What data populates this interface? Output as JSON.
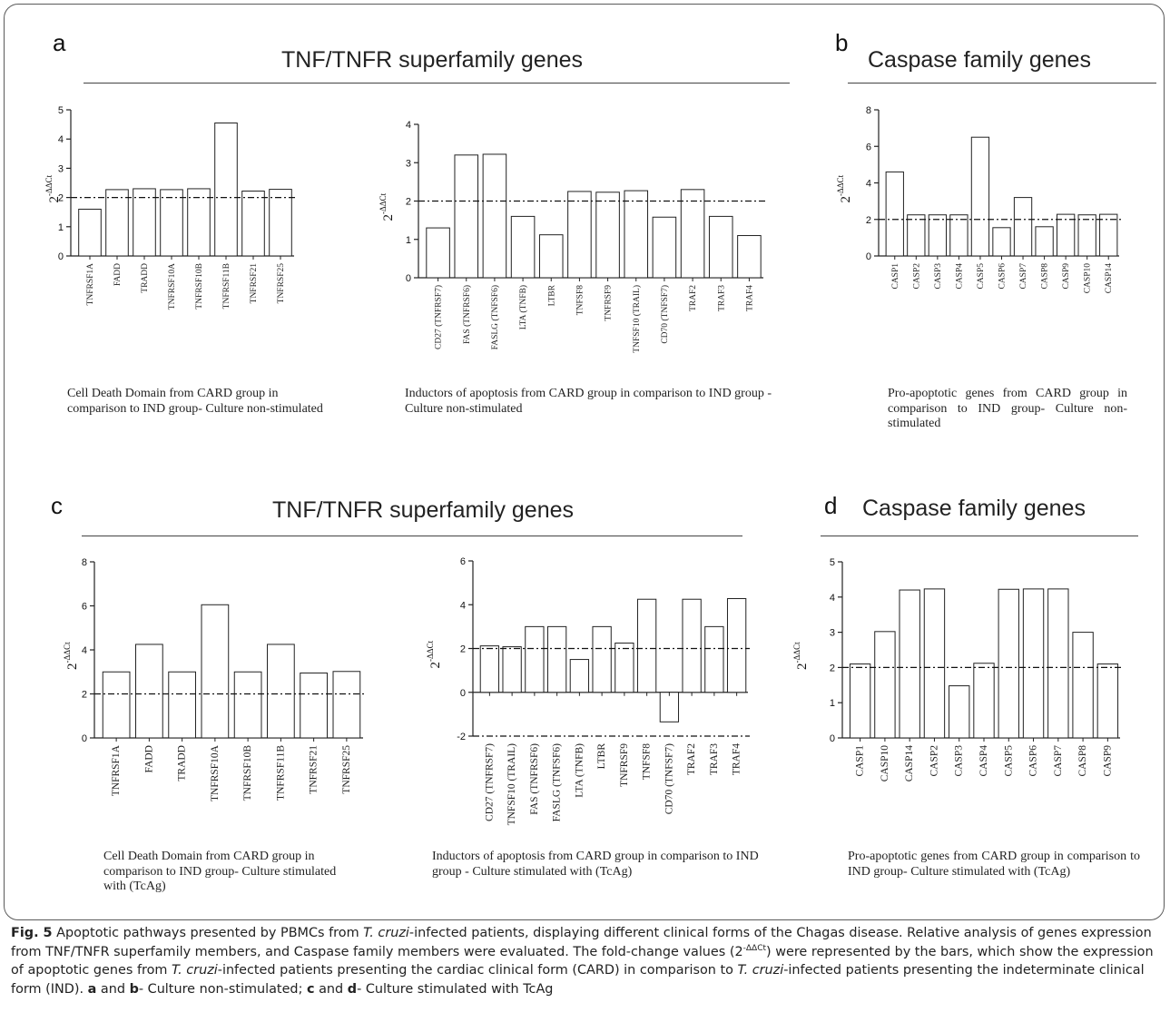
{
  "sections": {
    "a": {
      "letter": "a",
      "title": "TNF/TNFR superfamily genes"
    },
    "b": {
      "letter": "b",
      "title": "Caspase family genes"
    },
    "c": {
      "letter": "c",
      "title": "TNF/TNFR superfamily genes"
    },
    "d": {
      "letter": "d",
      "title": "Caspase family genes"
    }
  },
  "captions": {
    "a1": "Cell Death Domain from CARD group in comparison to IND group- Culture non-stimulated",
    "a2": "Inductors of apoptosis from CARD group in comparison to IND group - Culture non-stimulated",
    "b1": "Pro-apoptotic genes from CARD group in comparison to IND group- Culture non-stimulated",
    "c1": "Cell Death Domain from CARD group in comparison to IND group- Culture stimulated with (TcAg)",
    "c2": "Inductors of apoptosis from CARD group in comparison to IND group - Culture stimulated with (TcAg)",
    "d1": "Pro-apoptotic genes from CARD group in comparison to IND group- Culture stimulated with (TcAg)"
  },
  "figure_caption": {
    "label": "Fig. 5",
    "t1": " Apoptotic pathways presented by PBMCs from ",
    "species": "T. cruzi",
    "t2": "-infected patients, displaying different clinical forms of the Chagas disease. Relative analysis of genes expression from TNF/TNFR superfamily members, and Caspase family members were evaluated. The fold-change values (2",
    "sup": "-ΔΔCt",
    "t3": ") were represented by the bars, which show the expression of apoptotic genes from ",
    "t4": "-infected patients presenting the cardiac clinical form (CARD) in comparison to ",
    "t5": "-infected patients presenting the indeterminate clinical form (IND). ",
    "bold_a": "a",
    "and1": " and ",
    "bold_b": "b",
    "t6": "- Culture non-stimulated; ",
    "bold_c": "c",
    "and2": " and ",
    "bold_d": "d",
    "t7": "- Culture stimulated with TcAg"
  },
  "chart_data": [
    {
      "panel": "a1",
      "type": "bar",
      "ylabel": "2-ΔΔCt",
      "ylim": [
        0,
        5
      ],
      "yticks": [
        0,
        1,
        2,
        3,
        4,
        5
      ],
      "reference_line": 2,
      "categories": [
        "TNFRSF1A",
        "FADD",
        "TRADD",
        "TNFRSF10A",
        "TNFRSF10B",
        "TNFRSF11B",
        "TNFRSF21",
        "TNFRSF25"
      ],
      "values": [
        1.6,
        2.27,
        2.3,
        2.27,
        2.3,
        4.55,
        2.22,
        2.28
      ]
    },
    {
      "panel": "a2",
      "type": "bar",
      "ylabel": "2-ΔΔCt",
      "ylim": [
        0,
        4
      ],
      "yticks": [
        0,
        1,
        2,
        3,
        4
      ],
      "reference_line": 2,
      "categories": [
        "CD27 (TNFRSF7)",
        "FAS (TNFRSF6)",
        "FASLG (TNFSF6)",
        "LTA (TNFB)",
        "LTBR",
        "TNFSF8",
        "TNFRSF9",
        "TNFSF10 (TRAIL)",
        "CD70 (TNFSF7)",
        "TRAF2",
        "TRAF3",
        "TRAF4"
      ],
      "values": [
        1.3,
        3.2,
        3.22,
        1.6,
        1.12,
        2.25,
        2.23,
        2.27,
        1.58,
        2.3,
        1.6,
        1.1
      ]
    },
    {
      "panel": "b1",
      "type": "bar",
      "ylabel": "2-ΔΔCt",
      "ylim": [
        0,
        8
      ],
      "yticks": [
        0,
        2,
        4,
        6,
        8
      ],
      "reference_line": 2,
      "categories": [
        "CASP1",
        "CASP2",
        "CASP3",
        "CASP4",
        "CASP5",
        "CASP6",
        "CASP7",
        "CASP8",
        "CASP9",
        "CASP10",
        "CASP14"
      ],
      "values": [
        4.6,
        2.25,
        2.25,
        2.25,
        6.5,
        1.55,
        3.2,
        1.6,
        2.28,
        2.25,
        2.28
      ]
    },
    {
      "panel": "c1",
      "type": "bar",
      "ylabel": "2-ΔΔCt",
      "ylim": [
        0,
        8
      ],
      "yticks": [
        0,
        2,
        4,
        6,
        8
      ],
      "reference_line": 2,
      "categories": [
        "TNFRSF1A",
        "FADD",
        "TRADD",
        "TNFRSF10A",
        "TNFRSF10B",
        "TNFRSF11B",
        "TNFRSF21",
        "TNFRSF25"
      ],
      "values": [
        3.0,
        4.25,
        3.0,
        6.05,
        3.0,
        4.25,
        2.95,
        3.02
      ]
    },
    {
      "panel": "c2",
      "type": "bar",
      "ylabel": "2-ΔΔCt",
      "ylim": [
        -2,
        6
      ],
      "yticks": [
        -2,
        0,
        2,
        4,
        6
      ],
      "reference_line": 2,
      "lower_reference_line": -2,
      "categories": [
        "CD27 (TNFRSF7)",
        "TNFSF10 (TRAIL)",
        "FAS (TNFRSF6)",
        "FASLG (TNFSF6)",
        "LTA (TNFB)",
        "LTBR",
        "TNFRSF9",
        "TNFSF8",
        "CD70 (TNFSF7)",
        "TRAF2",
        "TRAF3",
        "TRAF4"
      ],
      "values": [
        2.12,
        2.08,
        3.0,
        3.0,
        1.5,
        3.0,
        2.25,
        4.25,
        -1.35,
        4.25,
        3.0,
        4.28
      ]
    },
    {
      "panel": "d1",
      "type": "bar",
      "ylabel": "2-ΔΔCt",
      "ylim": [
        0,
        5
      ],
      "yticks": [
        0,
        1,
        2,
        3,
        4,
        5
      ],
      "reference_line": 2,
      "categories": [
        "CASP1",
        "CASP10",
        "CASP14",
        "CASP2",
        "CASP3",
        "CASP4",
        "CASP5",
        "CASP6",
        "CASP7",
        "CASP8",
        "CASP9"
      ],
      "values": [
        2.1,
        3.02,
        4.2,
        4.23,
        1.48,
        2.12,
        4.22,
        4.23,
        4.23,
        3.0,
        2.1
      ]
    }
  ]
}
